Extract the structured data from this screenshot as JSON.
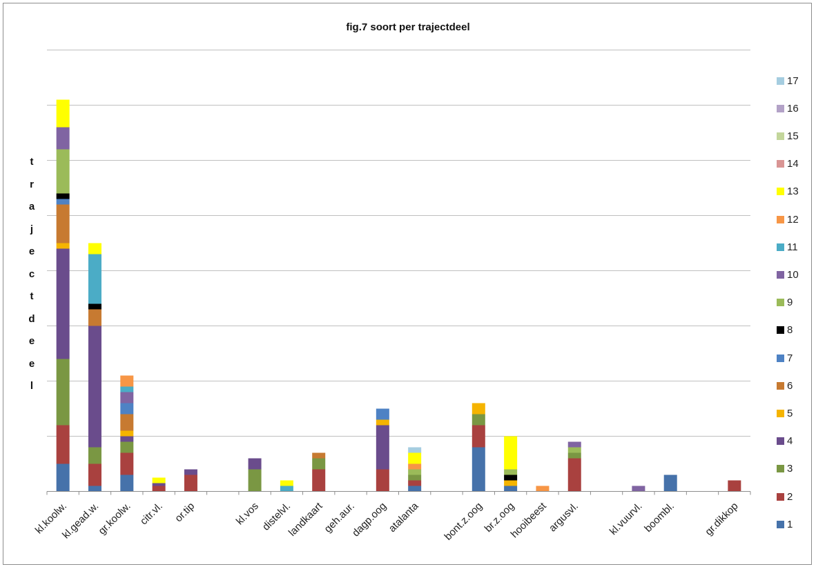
{
  "chart_data": {
    "type": "bar",
    "stacked": true,
    "title": "fig.7 soort per trajectdeel",
    "ylabel": "trajectdeel",
    "xlabel": "",
    "ylim": [
      0,
      160
    ],
    "y_gridlines": [
      0,
      20,
      40,
      60,
      80,
      100,
      120,
      140,
      160
    ],
    "y_tick_labels_shown": false,
    "grid": true,
    "legend_position": "right",
    "legend_order": "descending",
    "categories": [
      "kl.koolw.",
      "kl.gead.w.",
      "gr.koolw.",
      "citr.vl.",
      "or.tip",
      "",
      "kl.vos",
      "distelvl.",
      "landkaart",
      "geh.aur.",
      "dagp.oog",
      "atalanta",
      "",
      "bont.z.oog",
      "br.z.oog",
      "hooibeest",
      "argusvl.",
      "",
      "kl.vuurvl.",
      "boombl.",
      "",
      "gr.dikkop"
    ],
    "series": [
      {
        "name": "1",
        "color": "#4672aa",
        "values": [
          10,
          2,
          6,
          0,
          0,
          0,
          0,
          0,
          0,
          0,
          0,
          2,
          0,
          16,
          2,
          0,
          0,
          0,
          0,
          6,
          0,
          0
        ]
      },
      {
        "name": "2",
        "color": "#a9413f",
        "values": [
          14,
          8,
          8,
          2,
          6,
          0,
          0,
          0,
          8,
          0,
          8,
          2,
          0,
          8,
          0,
          0,
          12,
          0,
          0,
          0,
          0,
          4
        ]
      },
      {
        "name": "3",
        "color": "#7a9743",
        "values": [
          24,
          6,
          4,
          0,
          0,
          0,
          8,
          0,
          4,
          0,
          0,
          2,
          0,
          4,
          0,
          0,
          2,
          0,
          0,
          0,
          0,
          0
        ]
      },
      {
        "name": "4",
        "color": "#6a4c8c",
        "values": [
          40,
          44,
          2,
          1,
          2,
          0,
          4,
          0,
          0,
          0,
          16,
          0,
          0,
          0,
          0,
          0,
          0,
          0,
          0,
          0,
          0,
          0
        ]
      },
      {
        "name": "5",
        "color": "#f5b400",
        "values": [
          2,
          0,
          2,
          0,
          0,
          0,
          0,
          0,
          0,
          0,
          2,
          0,
          0,
          4,
          2,
          0,
          0,
          0,
          0,
          0,
          0,
          0
        ]
      },
      {
        "name": "6",
        "color": "#c77a31",
        "values": [
          14,
          6,
          6,
          0,
          0,
          0,
          0,
          0,
          2,
          0,
          0,
          0,
          0,
          0,
          0,
          0,
          0,
          0,
          0,
          0,
          0,
          0
        ]
      },
      {
        "name": "7",
        "color": "#4e82c4",
        "values": [
          2,
          0,
          4,
          0,
          0,
          0,
          0,
          0,
          0,
          0,
          4,
          0,
          0,
          0,
          0,
          0,
          0,
          0,
          0,
          0,
          0,
          0
        ]
      },
      {
        "name": "8",
        "color": "#000000",
        "values": [
          2,
          2,
          0,
          0,
          0,
          0,
          0,
          0,
          0,
          0,
          0,
          0,
          0,
          0,
          2,
          0,
          0,
          0,
          0,
          0,
          0,
          0
        ]
      },
      {
        "name": "9",
        "color": "#9bbb59",
        "values": [
          16,
          0,
          0,
          0,
          0,
          0,
          0,
          0,
          0,
          0,
          0,
          2,
          0,
          0,
          2,
          0,
          2,
          0,
          0,
          0,
          0,
          0
        ]
      },
      {
        "name": "10",
        "color": "#8064a2",
        "values": [
          8,
          0,
          4,
          0,
          0,
          0,
          0,
          0,
          0,
          0,
          0,
          0,
          0,
          0,
          0,
          0,
          2,
          0,
          2,
          0,
          0,
          0
        ]
      },
      {
        "name": "11",
        "color": "#4bacc6",
        "values": [
          0,
          18,
          2,
          0,
          0,
          0,
          0,
          2,
          0,
          0,
          0,
          0,
          0,
          0,
          0,
          0,
          0,
          0,
          0,
          0,
          0,
          0
        ]
      },
      {
        "name": "12",
        "color": "#f79646",
        "values": [
          0,
          0,
          4,
          0,
          0,
          0,
          0,
          0,
          0,
          0,
          0,
          2,
          0,
          0,
          0,
          2,
          0,
          0,
          0,
          0,
          0,
          0
        ]
      },
      {
        "name": "13",
        "color": "#ffff00",
        "values": [
          10,
          4,
          0,
          2,
          0,
          0,
          0,
          2,
          0,
          0,
          0,
          4,
          0,
          0,
          12,
          0,
          0,
          0,
          0,
          0,
          0,
          0
        ]
      },
      {
        "name": "14",
        "color": "#d99594",
        "values": [
          0,
          0,
          0,
          0,
          0,
          0,
          0,
          0,
          0,
          0,
          0,
          0,
          0,
          0,
          0,
          0,
          0,
          0,
          0,
          0,
          0,
          0
        ]
      },
      {
        "name": "15",
        "color": "#c3d69b",
        "values": [
          0,
          0,
          0,
          0,
          0,
          0,
          0,
          0,
          0,
          0,
          0,
          0,
          0,
          0,
          0,
          0,
          0,
          0,
          0,
          0,
          0,
          0
        ]
      },
      {
        "name": "16",
        "color": "#b3a2c7",
        "values": [
          0,
          0,
          0,
          0,
          0,
          0,
          0,
          0,
          0,
          0,
          0,
          0,
          0,
          0,
          0,
          0,
          0,
          0,
          0,
          0,
          0,
          0
        ]
      },
      {
        "name": "17",
        "color": "#a5cde0",
        "values": [
          0,
          0,
          0,
          0,
          0,
          0,
          0,
          0,
          0,
          0,
          0,
          2,
          0,
          0,
          0,
          0,
          0,
          0,
          0,
          0,
          0,
          0
        ]
      }
    ]
  }
}
